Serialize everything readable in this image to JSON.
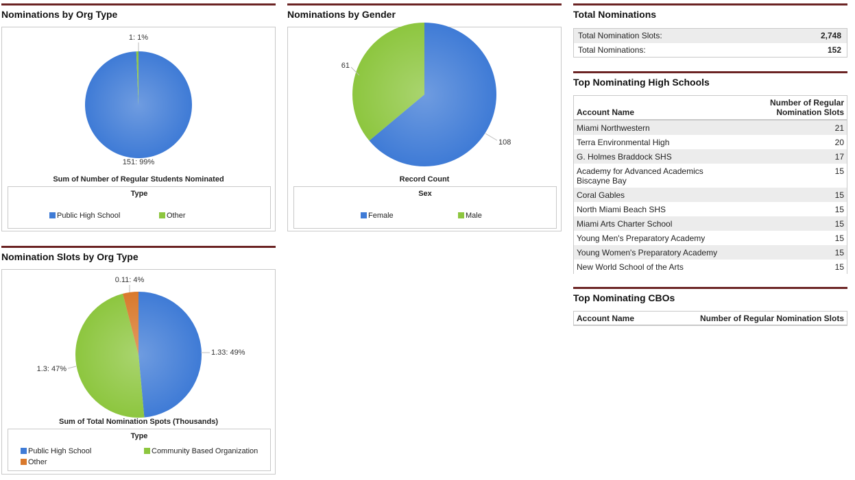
{
  "colors": {
    "blue": "#3f7bd6",
    "green": "#8dc63f",
    "orange": "#d9792c",
    "rule": "#6b2323"
  },
  "titles": {
    "org_type": "Nominations by Org Type",
    "gender": "Nominations by Gender",
    "slots": "Nomination Slots by Org Type",
    "total": "Total Nominations",
    "top_hs": "Top Nominating High Schools",
    "top_cbo": "Top Nominating CBOs"
  },
  "chart_data": [
    {
      "type": "pie",
      "title": "Nominations by Org Type",
      "measure": "Sum of Number of Regular Students Nominated",
      "legend_title": "Type",
      "slices": [
        {
          "name": "Public High School",
          "value": 151,
          "label": "151: 99%",
          "color": "#3f7bd6"
        },
        {
          "name": "Other",
          "value": 1,
          "label": "1: 1%",
          "color": "#8dc63f"
        }
      ]
    },
    {
      "type": "pie",
      "title": "Nominations by Gender",
      "measure": "Record Count",
      "legend_title": "Sex",
      "slices": [
        {
          "name": "Female",
          "value": 108,
          "label": "108",
          "color": "#3f7bd6"
        },
        {
          "name": "Male",
          "value": 61,
          "label": "61",
          "color": "#8dc63f"
        }
      ]
    },
    {
      "type": "pie",
      "title": "Nomination Slots by Org Type",
      "measure": "Sum of Total Nomination Spots (Thousands)",
      "legend_title": "Type",
      "slices": [
        {
          "name": "Public High School",
          "value": 1.33,
          "label": "1.33: 49%",
          "color": "#3f7bd6"
        },
        {
          "name": "Community Based Organization",
          "value": 1.3,
          "label": "1.3: 47%",
          "color": "#8dc63f"
        },
        {
          "name": "Other",
          "value": 0.11,
          "label": "0.11: 4%",
          "color": "#d9792c"
        }
      ]
    }
  ],
  "totals": {
    "rows": [
      {
        "label": "Total Nomination Slots:",
        "value": "2,748"
      },
      {
        "label": "Total Nominations:",
        "value": "152"
      }
    ]
  },
  "top_hs": {
    "col1": "Account Name",
    "col2_line1": "Number of Regular",
    "col2_line2": "Nomination Slots",
    "rows": [
      {
        "name": "Miami Northwestern",
        "value": "21"
      },
      {
        "name": "Terra Environmental High",
        "value": "20"
      },
      {
        "name": "G. Holmes Braddock SHS",
        "value": "17"
      },
      {
        "name": "Academy for Advanced Academics Biscayne Bay",
        "value": "15"
      },
      {
        "name": "Coral Gables",
        "value": "15"
      },
      {
        "name": "North Miami Beach SHS",
        "value": "15"
      },
      {
        "name": "Miami Arts Charter School",
        "value": "15"
      },
      {
        "name": "Young Men's Preparatory Academy",
        "value": "15"
      },
      {
        "name": "Young Women's Preparatory Academy",
        "value": "15"
      },
      {
        "name": "New World School of the Arts",
        "value": "15"
      }
    ]
  },
  "top_cbo": {
    "col1": "Account Name",
    "col2": "Number of Regular Nomination Slots"
  }
}
